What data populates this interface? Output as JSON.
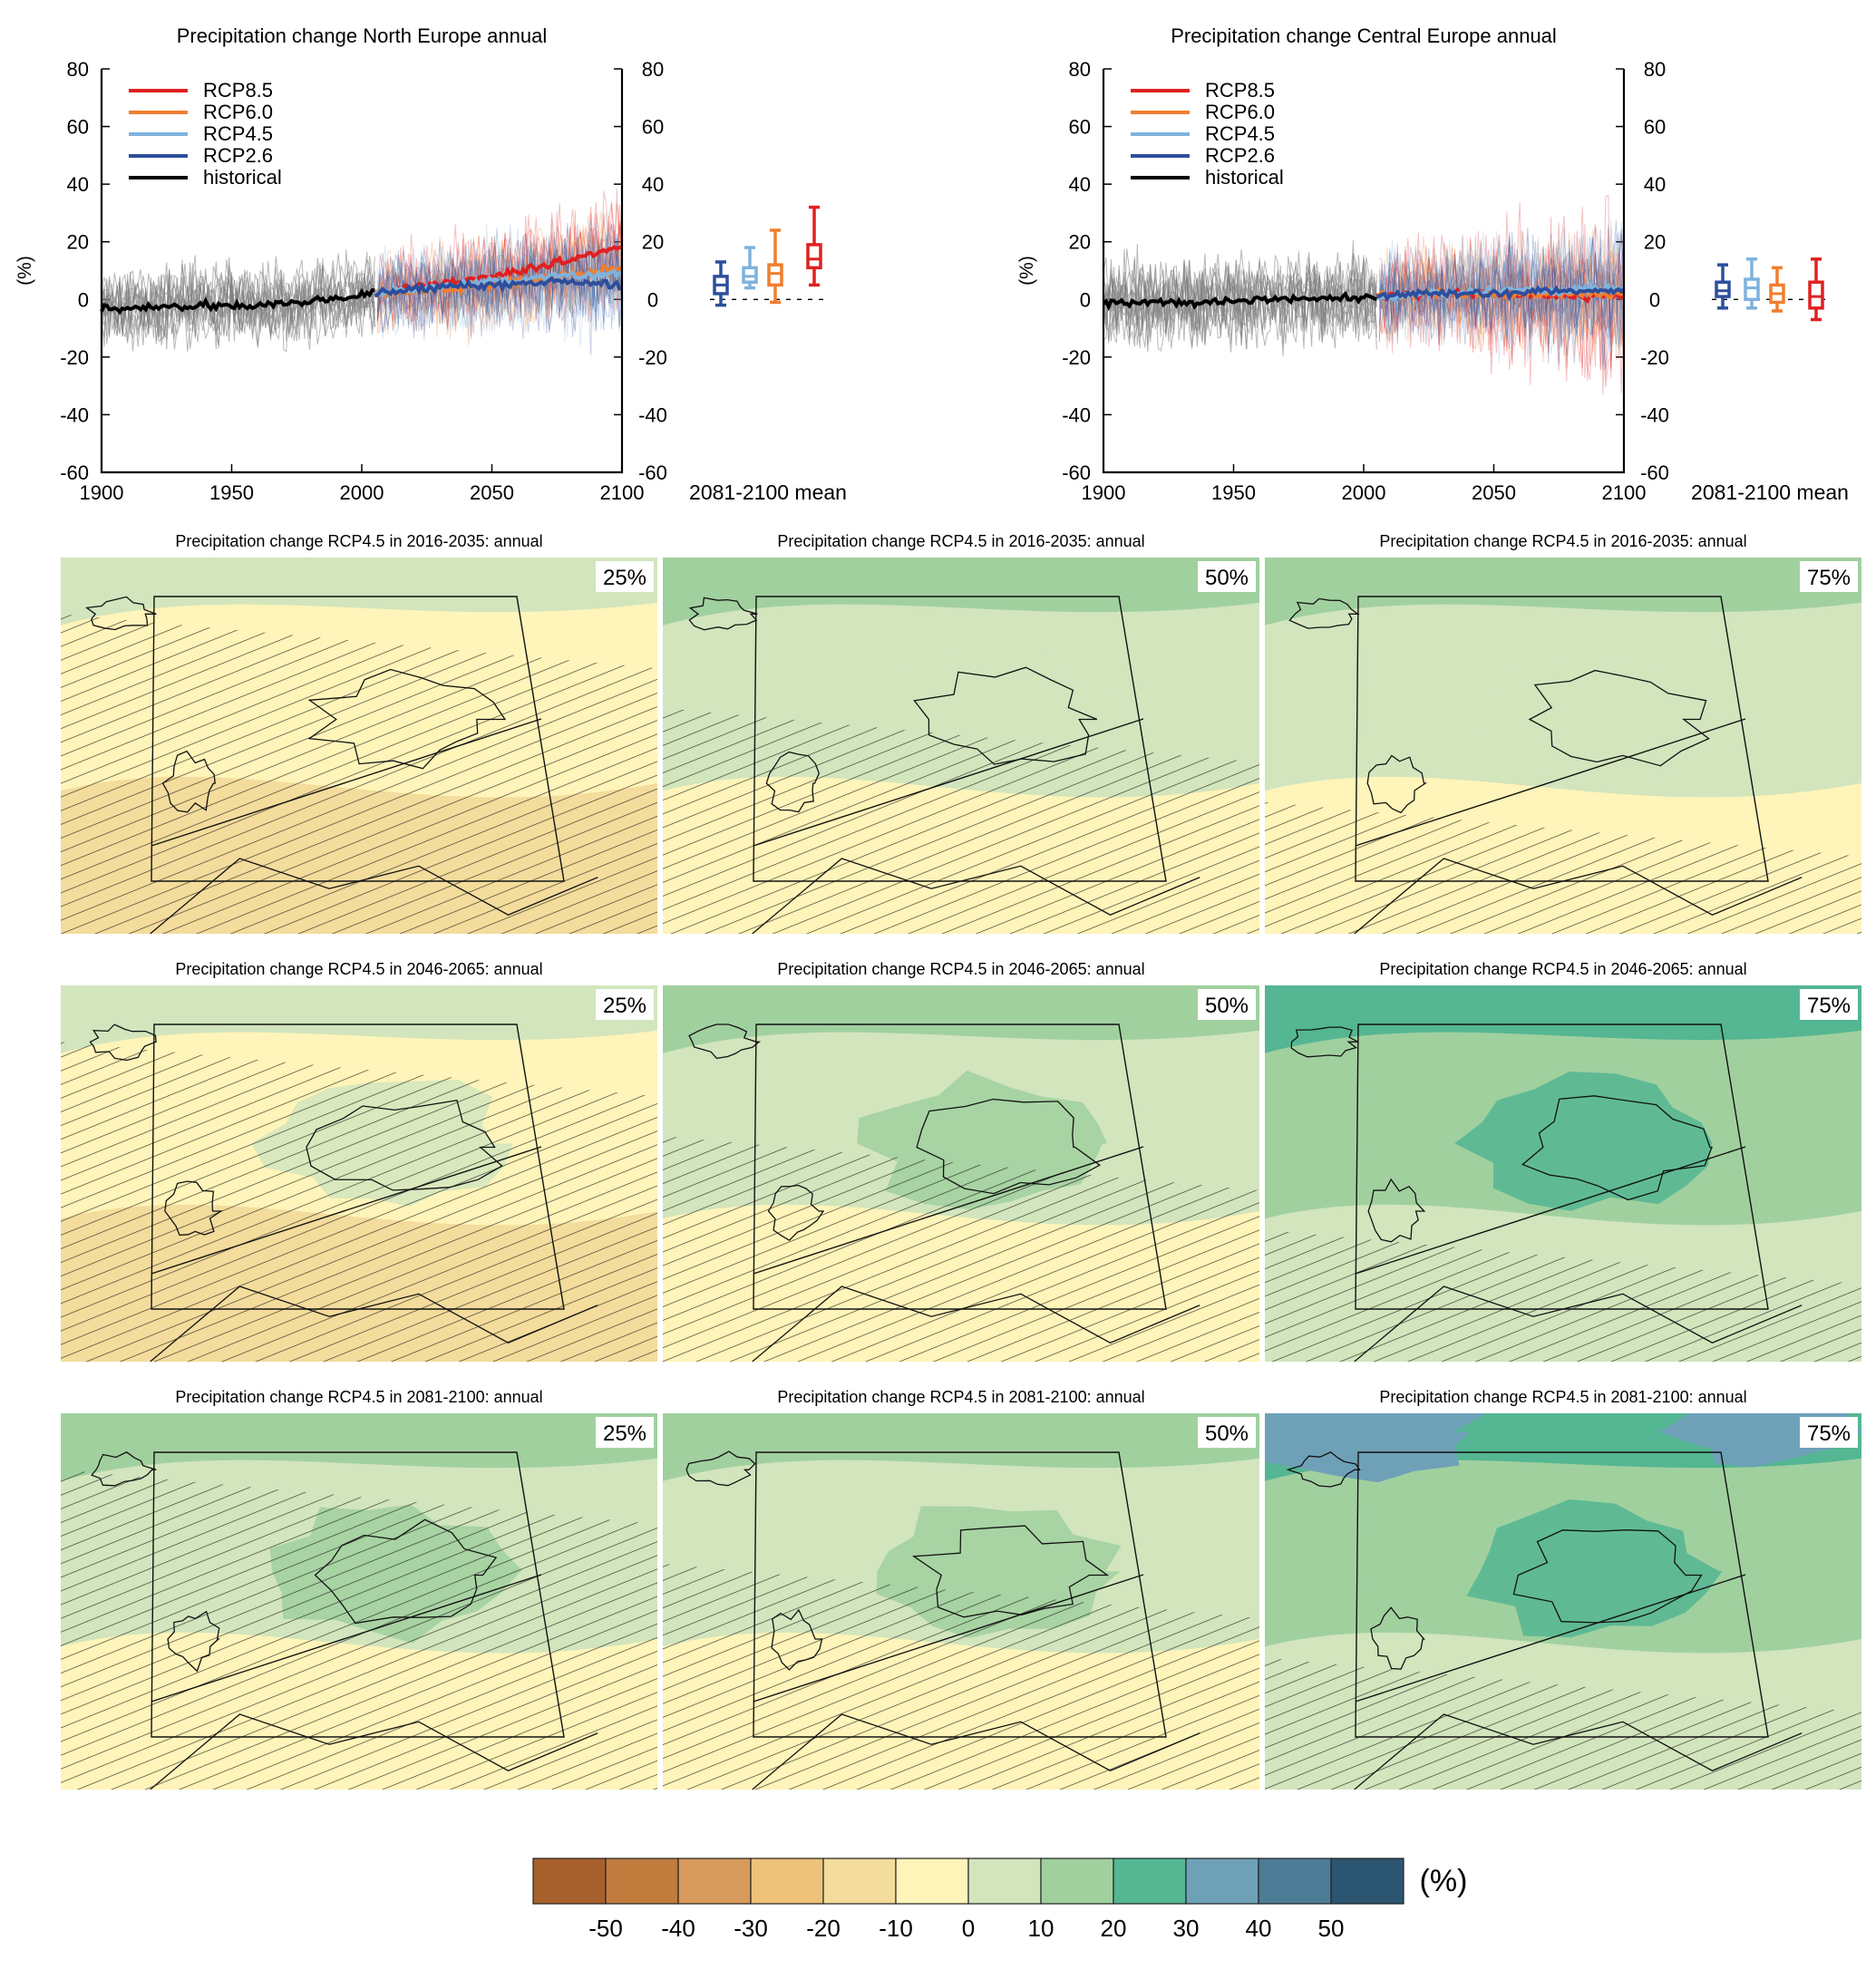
{
  "figure": {
    "colorbar": {
      "unit_label": "(%)",
      "tick_labels": [
        "-50",
        "-40",
        "-30",
        "-20",
        "-10",
        "0",
        "10",
        "20",
        "30",
        "40",
        "50"
      ],
      "colors": [
        "#a8602c",
        "#c17c3e",
        "#d79a5c",
        "#eec27a",
        "#f3dc9c",
        "#fff4b9",
        "#d2e5bd",
        "#a1d09f",
        "#54b692",
        "#6ea1b8",
        "#4d7c96",
        "#2b5570"
      ]
    },
    "map_grid": {
      "titles": [
        "Precipitation change RCP4.5 in 2016-2035: annual",
        "Precipitation change RCP4.5 in 2046-2065: annual",
        "Precipitation change RCP4.5 in 2081-2100: annual"
      ],
      "percentile_labels": [
        "25%",
        "50%",
        "75%"
      ],
      "level_matrix": [
        [
          0,
          10,
          10
        ],
        [
          0,
          10,
          20
        ],
        [
          10,
          10,
          20
        ]
      ]
    }
  },
  "chart_data": [
    {
      "type": "line",
      "title": "Precipitation change North Europe annual",
      "xlabel": "",
      "ylabel": "(%)",
      "xlim": [
        1900,
        2100
      ],
      "ylim": [
        -60,
        80
      ],
      "x_ticks": [
        "1900",
        "1950",
        "2000",
        "2050",
        "2100"
      ],
      "y_ticks": [
        "80",
        "60",
        "40",
        "20",
        "0",
        "-20",
        "-40",
        "-60"
      ],
      "legend": [
        "RCP8.5",
        "RCP6.0",
        "RCP4.5",
        "RCP2.6",
        "historical"
      ],
      "legend_colors": [
        "#e02020",
        "#f07e2e",
        "#7fb2dc",
        "#2d4e9c",
        "#000000"
      ],
      "legend_position": "top-left",
      "series": [
        {
          "name": "historical",
          "x": [
            1900,
            1920,
            1940,
            1960,
            1980,
            2005
          ],
          "values": [
            -3,
            -3,
            -2,
            -2,
            -1,
            2
          ]
        },
        {
          "name": "RCP2.6",
          "x": [
            2005,
            2025,
            2050,
            2075,
            2100
          ],
          "values": [
            2,
            4,
            5,
            6,
            5
          ]
        },
        {
          "name": "RCP4.5",
          "x": [
            2005,
            2025,
            2050,
            2075,
            2100
          ],
          "values": [
            2,
            4,
            6,
            8,
            9
          ]
        },
        {
          "name": "RCP6.0",
          "x": [
            2005,
            2025,
            2050,
            2075,
            2100
          ],
          "values": [
            2,
            3,
            5,
            8,
            11
          ]
        },
        {
          "name": "RCP8.5",
          "x": [
            2005,
            2025,
            2050,
            2075,
            2100
          ],
          "values": [
            2,
            5,
            8,
            13,
            18
          ]
        }
      ],
      "boxplot_label": "2081-2100 mean",
      "boxplots": [
        {
          "name": "RCP2.6",
          "min": -2,
          "q1": 2,
          "median": 5,
          "q3": 8,
          "max": 13
        },
        {
          "name": "RCP4.5",
          "min": 4,
          "q1": 6,
          "median": 8,
          "q3": 11,
          "max": 18
        },
        {
          "name": "RCP6.0",
          "min": -1,
          "q1": 5,
          "median": 9,
          "q3": 12,
          "max": 24
        },
        {
          "name": "RCP8.5",
          "min": 5,
          "q1": 11,
          "median": 14,
          "q3": 19,
          "max": 32
        }
      ]
    },
    {
      "type": "line",
      "title": "Precipitation change Central Europe annual",
      "xlabel": "",
      "ylabel": "(%)",
      "xlim": [
        1900,
        2100
      ],
      "ylim": [
        -60,
        80
      ],
      "x_ticks": [
        "1900",
        "1950",
        "2000",
        "2050",
        "2100"
      ],
      "y_ticks": [
        "80",
        "60",
        "40",
        "20",
        "0",
        "-20",
        "-40",
        "-60"
      ],
      "legend": [
        "RCP8.5",
        "RCP6.0",
        "RCP4.5",
        "RCP2.6",
        "historical"
      ],
      "legend_colors": [
        "#e02020",
        "#f07e2e",
        "#7fb2dc",
        "#2d4e9c",
        "#000000"
      ],
      "legend_position": "top-left",
      "series": [
        {
          "name": "historical",
          "x": [
            1900,
            1920,
            1940,
            1960,
            1980,
            2005
          ],
          "values": [
            -1,
            -1,
            -1,
            0,
            0,
            1
          ]
        },
        {
          "name": "RCP2.6",
          "x": [
            2005,
            2025,
            2050,
            2075,
            2100
          ],
          "values": [
            1,
            2,
            2,
            3,
            3
          ]
        },
        {
          "name": "RCP4.5",
          "x": [
            2005,
            2025,
            2050,
            2075,
            2100
          ],
          "values": [
            1,
            2,
            3,
            3,
            4
          ]
        },
        {
          "name": "RCP6.0",
          "x": [
            2005,
            2025,
            2050,
            2075,
            2100
          ],
          "values": [
            1,
            2,
            2,
            2,
            2
          ]
        },
        {
          "name": "RCP8.5",
          "x": [
            2005,
            2025,
            2050,
            2075,
            2100
          ],
          "values": [
            1,
            2,
            2,
            1,
            1
          ]
        }
      ],
      "boxplot_label": "2081-2100 mean",
      "boxplots": [
        {
          "name": "RCP2.6",
          "min": -3,
          "q1": 1,
          "median": 3,
          "q3": 6,
          "max": 12
        },
        {
          "name": "RCP4.5",
          "min": -3,
          "q1": 0,
          "median": 4,
          "q3": 7,
          "max": 14
        },
        {
          "name": "RCP6.0",
          "min": -4,
          "q1": -1,
          "median": 2,
          "q3": 5,
          "max": 11
        },
        {
          "name": "RCP8.5",
          "min": -7,
          "q1": -3,
          "median": 1,
          "q3": 6,
          "max": 14
        }
      ]
    }
  ]
}
